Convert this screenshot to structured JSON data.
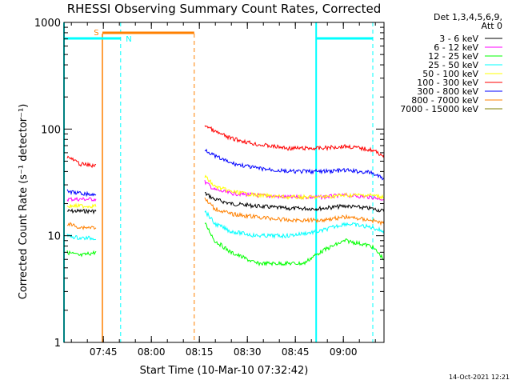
{
  "chart_data": {
    "type": "line",
    "title": "RHESSI Observing Summary Count Rates, Corrected",
    "xlabel": "Start Time (10-Mar-10 07:32:42)",
    "ylabel": "Corrected Count Rate (s⁻¹ detector⁻¹)",
    "yscale": "log",
    "ylim": [
      1,
      1000
    ],
    "xlim_minutes": [
      0,
      100
    ],
    "x_ticks": [
      {
        "label": "07:45",
        "minute": 12.3
      },
      {
        "label": "08:00",
        "minute": 27.3
      },
      {
        "label": "08:15",
        "minute": 42.3
      },
      {
        "label": "08:30",
        "minute": 57.3
      },
      {
        "label": "08:45",
        "minute": 72.3
      },
      {
        "label": "09:00",
        "minute": 87.3
      }
    ],
    "y_ticks": [
      {
        "label": "1",
        "value": 1
      },
      {
        "label": "10",
        "value": 10
      },
      {
        "label": "100",
        "value": 100
      },
      {
        "label": "1000",
        "value": 1000
      }
    ],
    "legend_header": [
      "Det 1,3,4,5,6,9,",
      "Att 0"
    ],
    "legend_position": "top-right",
    "series": [
      {
        "name": "3 - 6 keV",
        "color": "#000000",
        "segments": [
          {
            "x": [
              1,
              5,
              10
            ],
            "y": [
              17,
              17,
              17
            ]
          },
          {
            "x": [
              44,
              47,
              52,
              60,
              70,
              80,
              88,
              96,
              100
            ],
            "y": [
              25,
              22,
              20,
              19,
              18,
              18,
              19,
              18,
              17
            ]
          }
        ]
      },
      {
        "name": "6 - 12 keV",
        "color": "#ff00ff",
        "segments": [
          {
            "x": [
              1,
              5,
              10
            ],
            "y": [
              22,
              22,
              22
            ]
          },
          {
            "x": [
              44,
              47,
              52,
              60,
              70,
              80,
              88,
              96,
              100
            ],
            "y": [
              32,
              27,
              25,
              24,
              23,
              23,
              24,
              23,
              22
            ]
          }
        ]
      },
      {
        "name": "12 - 25 keV",
        "color": "#00ff00",
        "segments": [
          {
            "x": [
              1,
              5,
              10
            ],
            "y": [
              7,
              6.5,
              7
            ]
          },
          {
            "x": [
              44,
              47,
              52,
              60,
              70,
              75,
              80,
              88,
              96,
              100
            ],
            "y": [
              13,
              9,
              7,
              5.5,
              5.5,
              5.5,
              7,
              9,
              8,
              6
            ]
          }
        ]
      },
      {
        "name": "25 - 50 keV",
        "color": "#00ffff",
        "segments": [
          {
            "x": [
              1,
              5,
              10
            ],
            "y": [
              10,
              9.5,
              9.5
            ]
          },
          {
            "x": [
              44,
              47,
              52,
              60,
              70,
              80,
              88,
              96,
              100
            ],
            "y": [
              17,
              13,
              11,
              10,
              10,
              11,
              13,
              12,
              11
            ]
          }
        ]
      },
      {
        "name": "50 - 100 keV",
        "color": "#ffff00",
        "segments": [
          {
            "x": [
              1,
              5,
              10
            ],
            "y": [
              19,
              19,
              19
            ]
          },
          {
            "x": [
              44,
              47,
              52,
              60,
              70,
              80,
              88,
              96,
              100
            ],
            "y": [
              36,
              29,
              26,
              24,
              23,
              23,
              24,
              24,
              23
            ]
          }
        ]
      },
      {
        "name": "100 - 300 keV",
        "color": "#ff0000",
        "segments": [
          {
            "x": [
              1,
              5,
              10
            ],
            "y": [
              55,
              47,
              45
            ]
          },
          {
            "x": [
              44,
              47,
              52,
              60,
              70,
              80,
              88,
              96,
              100
            ],
            "y": [
              110,
              95,
              82,
              72,
              66,
              66,
              69,
              64,
              56
            ]
          }
        ]
      },
      {
        "name": "300 - 800 keV",
        "color": "#0000ff",
        "segments": [
          {
            "x": [
              1,
              5,
              10
            ],
            "y": [
              26,
              25,
              24
            ]
          },
          {
            "x": [
              44,
              47,
              52,
              60,
              70,
              80,
              88,
              96,
              100
            ],
            "y": [
              65,
              56,
              48,
              43,
              40,
              40,
              41,
              39,
              34
            ]
          }
        ]
      },
      {
        "name": "800 - 7000 keV",
        "color": "#ff8000",
        "segments": [
          {
            "x": [
              1,
              5,
              10
            ],
            "y": [
              13,
              12,
              12
            ]
          },
          {
            "x": [
              44,
              47,
              52,
              60,
              70,
              80,
              88,
              96,
              100
            ],
            "y": [
              22,
              18,
              16,
              15,
              14,
              14,
              15,
              14,
              13
            ]
          }
        ]
      },
      {
        "name": "7000 - 15000 keV",
        "color": "#808000",
        "segments": []
      }
    ],
    "flag_labels": [
      {
        "label": "S",
        "color": "#ff8000"
      },
      {
        "label": "N",
        "color": "#00ffff"
      }
    ],
    "footer_timestamp": "14-Oct-2021 12:21"
  }
}
